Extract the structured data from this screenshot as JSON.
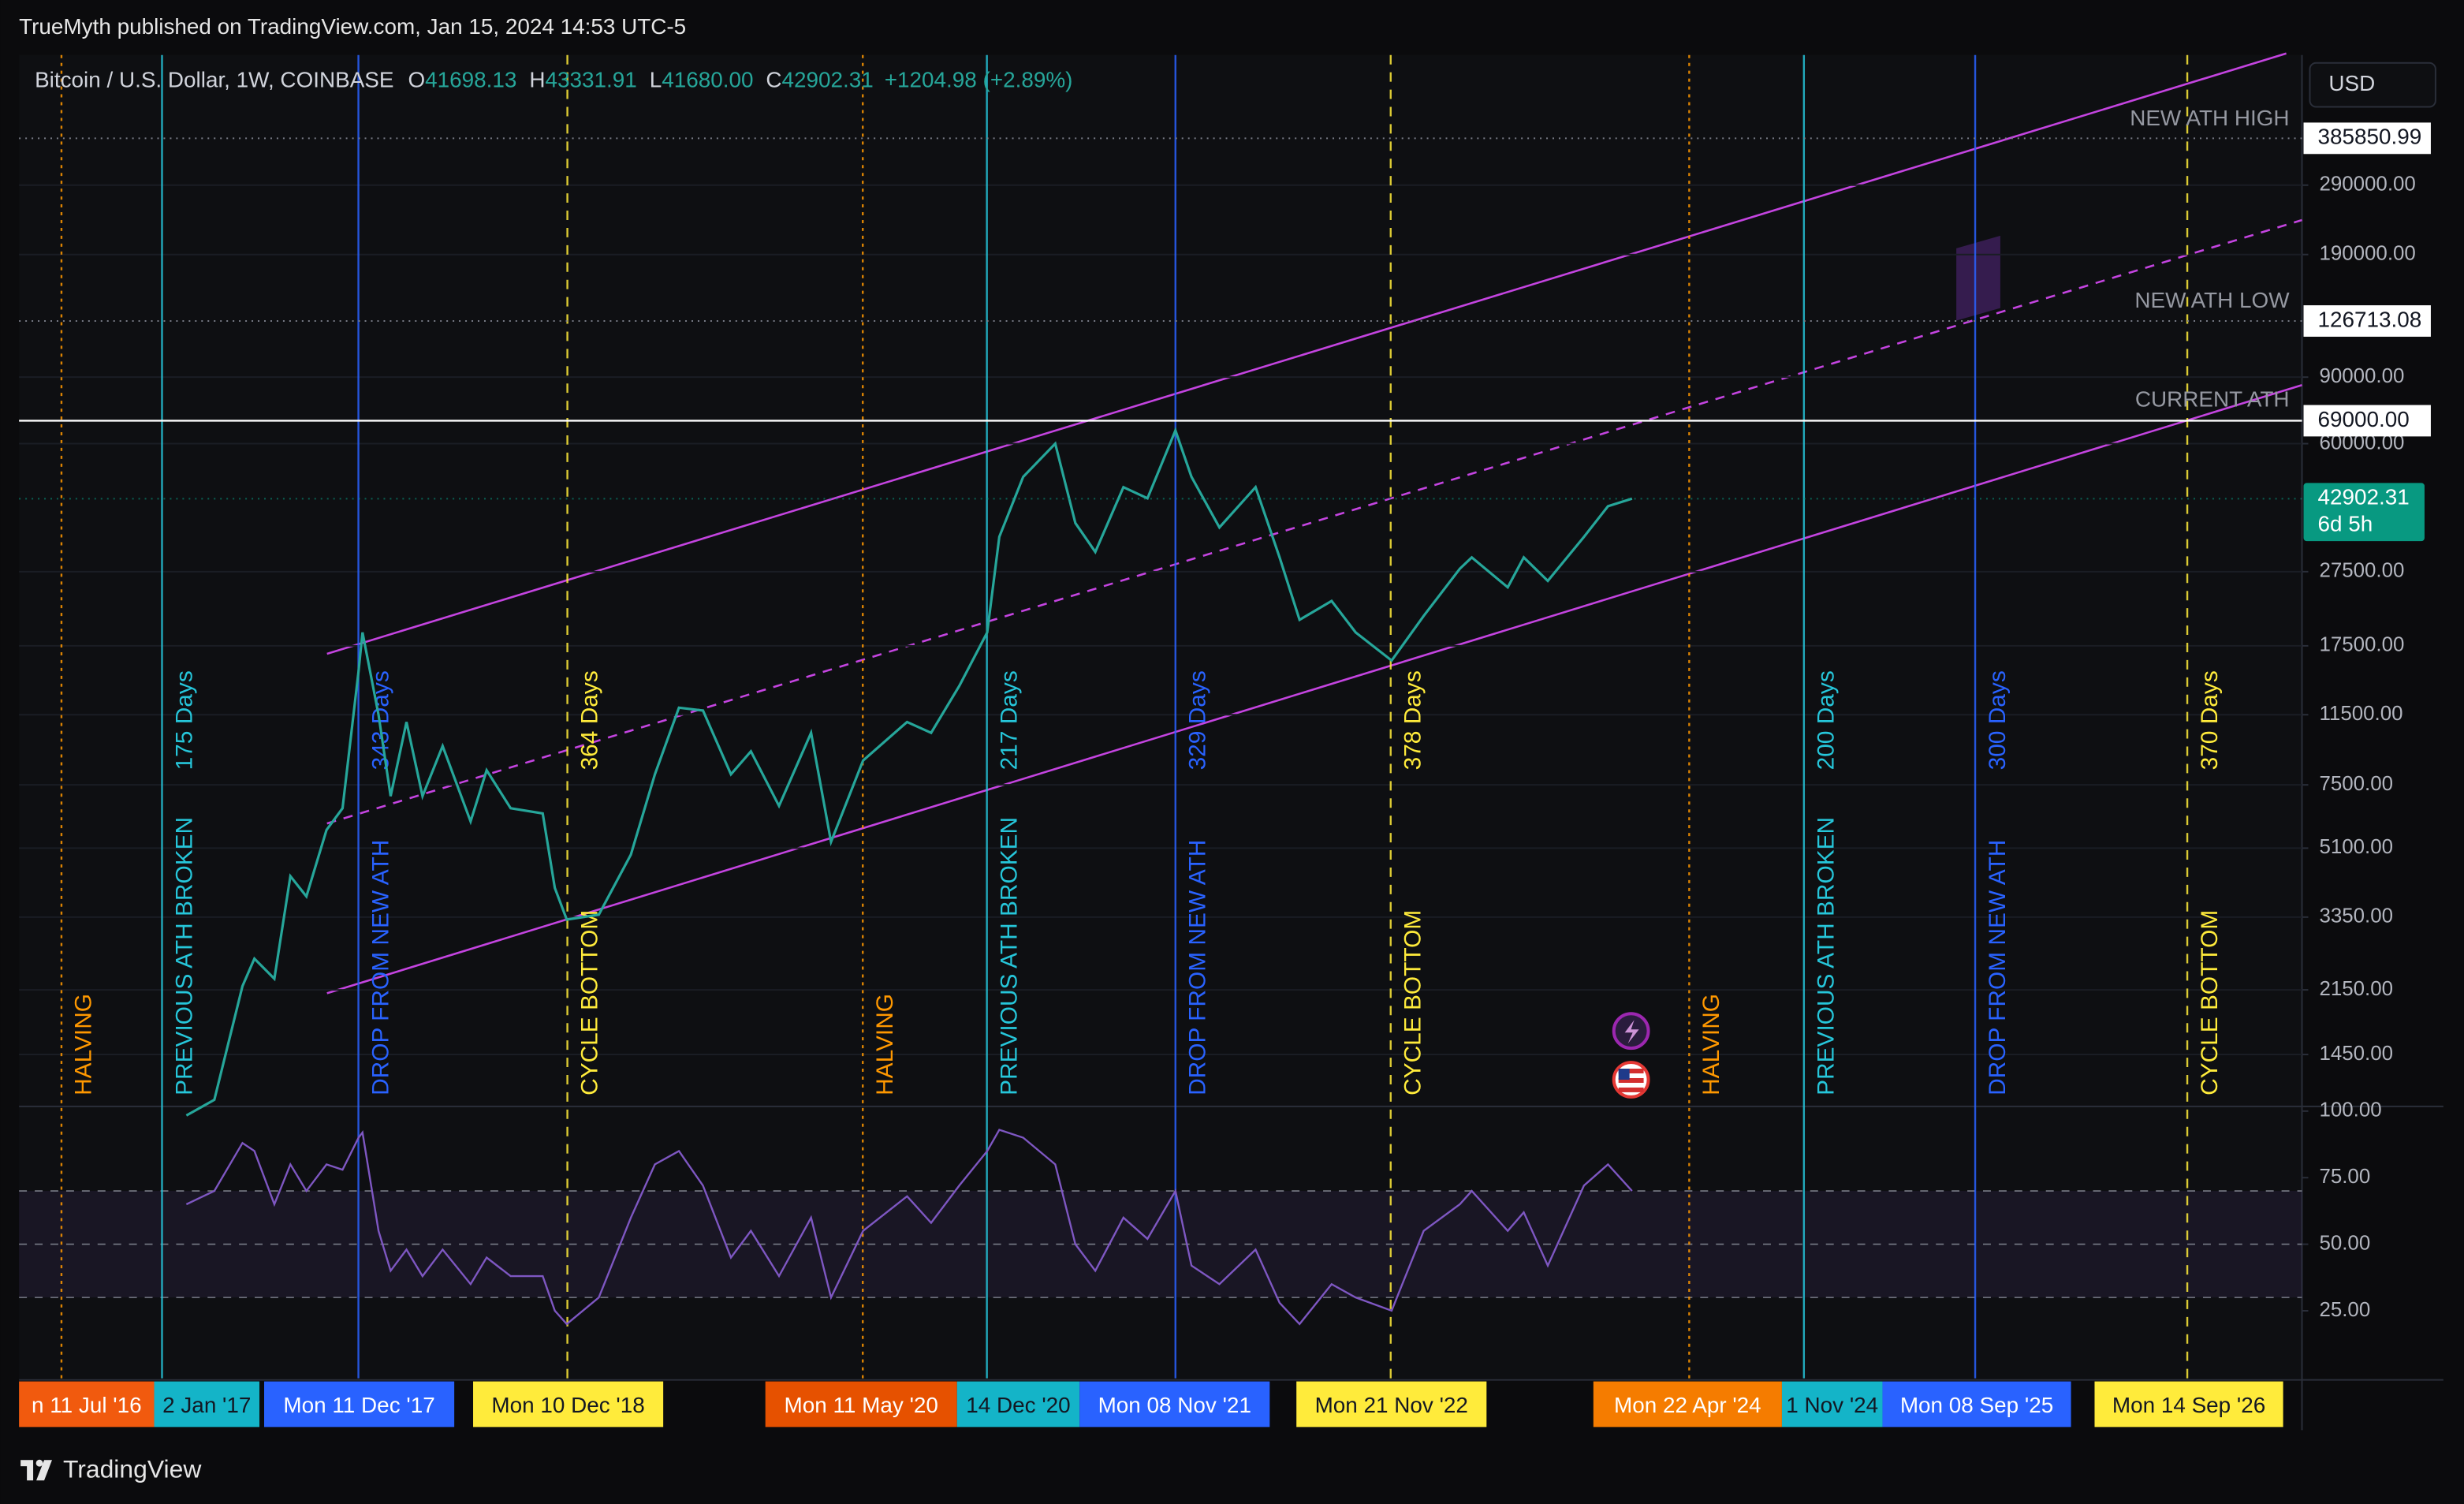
{
  "header": {
    "publisher": "TrueMyth published on TradingView.com, Jan 15, 2024 14:53 UTC-5"
  },
  "legend": {
    "symbol": "Bitcoin / U.S. Dollar, 1W, COINBASE",
    "ohlc": [
      {
        "key": "O",
        "value": "41698.13"
      },
      {
        "key": "H",
        "value": "43331.91"
      },
      {
        "key": "L",
        "value": "41680.00"
      },
      {
        "key": "C",
        "value": "42902.31"
      }
    ],
    "change": "+1204.98 (+2.89%)"
  },
  "footer": {
    "brand": "TradingView"
  },
  "chart_data": {
    "type": "line",
    "currency": "USD",
    "log_scale": true,
    "grid": true,
    "x": [
      "2017-02-13",
      "2017-04-03",
      "2017-05-22",
      "2017-06-12",
      "2017-07-17",
      "2017-08-14",
      "2017-09-11",
      "2017-10-16",
      "2017-11-13",
      "2017-12-11",
      "2017-12-18",
      "2018-01-15",
      "2018-02-05",
      "2018-03-05",
      "2018-04-02",
      "2018-05-07",
      "2018-06-25",
      "2018-07-23",
      "2018-09-03",
      "2018-10-29",
      "2018-11-19",
      "2018-12-10",
      "2019-02-04",
      "2019-04-01",
      "2019-05-13",
      "2019-06-24",
      "2019-08-05",
      "2019-09-23",
      "2019-10-28",
      "2019-12-16",
      "2020-02-10",
      "2020-03-16",
      "2020-05-11",
      "2020-07-27",
      "2020-09-07",
      "2020-10-26",
      "2020-12-14",
      "2021-01-04",
      "2021-02-15",
      "2021-04-12",
      "2021-05-17",
      "2021-06-21",
      "2021-08-09",
      "2021-09-20",
      "2021-11-08",
      "2021-12-06",
      "2022-01-24",
      "2022-03-28",
      "2022-05-09",
      "2022-06-13",
      "2022-08-08",
      "2022-09-19",
      "2022-11-21",
      "2023-01-16",
      "2023-03-20",
      "2023-04-10",
      "2023-06-12",
      "2023-07-10",
      "2023-08-21",
      "2023-10-23",
      "2023-12-04",
      "2024-01-15"
    ],
    "series": [
      {
        "color": "#26a69a",
        "values": [
          1000,
          1100,
          2200,
          2600,
          2300,
          4300,
          3800,
          5700,
          6500,
          15000,
          19000,
          11500,
          7000,
          11000,
          7000,
          9500,
          6000,
          8200,
          6500,
          6300,
          4000,
          3300,
          3400,
          4900,
          8000,
          12000,
          11800,
          8000,
          9200,
          6600,
          10300,
          5300,
          8700,
          11000,
          10300,
          13700,
          19000,
          34000,
          49000,
          60000,
          37000,
          31000,
          46000,
          43000,
          65000,
          49000,
          36000,
          46000,
          30000,
          20500,
          23000,
          19000,
          16000,
          21000,
          28000,
          30000,
          25000,
          30000,
          26000,
          34000,
          41000,
          42902.31
        ]
      }
    ],
    "ylim": [
      1067,
      641000
    ],
    "yticks": [
      {
        "value": 290000,
        "label": "290000.00"
      },
      {
        "value": 190000,
        "label": "190000.00"
      },
      {
        "value": 90000,
        "label": "90000.00"
      },
      {
        "value": 60000,
        "label": "60000.00"
      },
      {
        "value": 27500,
        "label": "27500.00"
      },
      {
        "value": 17500,
        "label": "17500.00"
      },
      {
        "value": 11500,
        "label": "11500.00"
      },
      {
        "value": 7500,
        "label": "7500.00"
      },
      {
        "value": 5100,
        "label": "5100.00"
      },
      {
        "value": 3350,
        "label": "3350.00"
      },
      {
        "value": 2150,
        "label": "2150.00"
      },
      {
        "value": 1450,
        "label": "1450.00"
      }
    ],
    "levels": [
      {
        "name": "NEW ATH HIGH",
        "value": 385850.99,
        "label": "385850.99",
        "style": "dotted",
        "color": "#787b86"
      },
      {
        "name": "NEW ATH LOW",
        "value": 126713.08,
        "label": "126713.08",
        "style": "dotted",
        "color": "#787b86"
      },
      {
        "name": "CURRENT ATH",
        "value": 69000,
        "label": "69000.00",
        "style": "solid",
        "color": "#ffffff"
      }
    ],
    "last_price": {
      "value": 42902.31,
      "label": "42902.31",
      "countdown": "6d 5h",
      "color": "#089981"
    },
    "events": [
      {
        "date": "n 11 Jul '16",
        "label": "HALVING",
        "color": "#ff9800",
        "box_color": "#f15a0e",
        "text_color": "#ffffff",
        "line": "dotted"
      },
      {
        "date": "2 Jan '17",
        "label": "PREVIOUS ATH BROKEN",
        "days": "175 Days",
        "color": "#26c6da",
        "box_color": "#14b4c8",
        "text_color": "#131722",
        "line": "solid"
      },
      {
        "date": "Mon 11 Dec '17",
        "label": "DROP FROM NEW ATH",
        "days": "343 Days",
        "color": "#2962ff",
        "box_color": "#2962ff",
        "text_color": "#ffffff",
        "line": "solid"
      },
      {
        "date": "Mon 10 Dec '18",
        "label": "CYCLE BOTTOM",
        "days": "364 Days",
        "color": "#ffeb3b",
        "box_color": "#ffeb3b",
        "text_color": "#131722",
        "line": "dashed"
      },
      {
        "date": "Mon 11 May '20",
        "label": "HALVING",
        "color": "#ff9800",
        "box_color": "#e65100",
        "text_color": "#ffffff",
        "line": "dotted"
      },
      {
        "date": "14 Dec '20",
        "label": "PREVIOUS ATH BROKEN",
        "days": "217 Days",
        "color": "#26c6da",
        "box_color": "#14b4c8",
        "text_color": "#131722",
        "line": "solid"
      },
      {
        "date": "Mon 08 Nov '21",
        "label": "DROP FROM NEW ATH",
        "days": "329 Days",
        "color": "#2962ff",
        "box_color": "#2962ff",
        "text_color": "#ffffff",
        "line": "solid"
      },
      {
        "date": "Mon 21 Nov '22",
        "label": "CYCLE BOTTOM",
        "days": "378 Days",
        "color": "#ffeb3b",
        "box_color": "#ffeb3b",
        "text_color": "#131722",
        "line": "dashed"
      },
      {
        "date": "Mon 22 Apr '24",
        "label": "HALVING",
        "color": "#ff9800",
        "box_color": "#f57c00",
        "text_color": "#ffffff",
        "line": "dotted"
      },
      {
        "date": "1 Nov '24",
        "label": "PREVIOUS ATH BROKEN",
        "days": "200 Days",
        "color": "#26c6da",
        "box_color": "#14b4c8",
        "text_color": "#131722",
        "line": "solid"
      },
      {
        "date": "Mon 08 Sep '25",
        "label": "DROP FROM NEW ATH",
        "days": "300 Days",
        "color": "#2962ff",
        "box_color": "#2962ff",
        "text_color": "#ffffff",
        "line": "solid"
      },
      {
        "date": "Mon 14 Sep '26",
        "label": "CYCLE BOTTOM",
        "days": "370 Days",
        "color": "#ffeb3b",
        "box_color": "#ffeb3b",
        "text_color": "#131722",
        "line": "dashed"
      }
    ],
    "rsi": {
      "color": "#7e57c2",
      "ylim": [
        0,
        100
      ],
      "yticks": [
        {
          "value": 100,
          "label": "100.00"
        },
        {
          "value": 75,
          "label": "75.00"
        },
        {
          "value": 50,
          "label": "50.00"
        },
        {
          "value": 25,
          "label": "25.00"
        }
      ],
      "bands": [
        70,
        50,
        30
      ],
      "values": [
        65,
        70,
        88,
        85,
        65,
        80,
        70,
        80,
        78,
        90,
        92,
        55,
        40,
        48,
        38,
        48,
        35,
        45,
        38,
        38,
        25,
        20,
        30,
        60,
        80,
        85,
        72,
        45,
        55,
        38,
        60,
        30,
        55,
        68,
        58,
        72,
        85,
        93,
        90,
        80,
        50,
        40,
        60,
        52,
        70,
        42,
        35,
        48,
        28,
        20,
        35,
        30,
        25,
        55,
        65,
        70,
        55,
        62,
        42,
        72,
        80,
        70
      ]
    }
  }
}
